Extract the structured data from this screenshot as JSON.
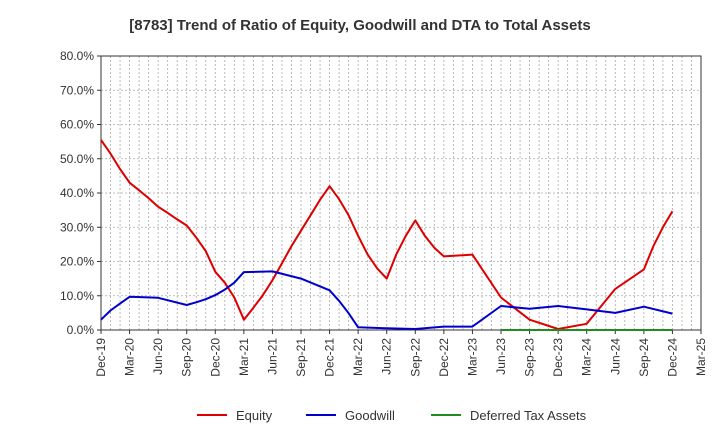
{
  "chart_data": {
    "type": "line",
    "title": "[8783]  Trend of Ratio of Equity, Goodwill and DTA to Total Assets",
    "xlabel": "",
    "ylabel": "",
    "ylim": [
      0,
      80
    ],
    "y_ticks": [
      0,
      10,
      20,
      30,
      40,
      50,
      60,
      70,
      80
    ],
    "y_tick_labels": [
      "0.0%",
      "10.0%",
      "20.0%",
      "30.0%",
      "40.0%",
      "50.0%",
      "60.0%",
      "70.0%",
      "80.0%"
    ],
    "x_ticks": [
      "Dec-19",
      "Mar-20",
      "Jun-20",
      "Sep-20",
      "Dec-20",
      "Mar-21",
      "Jun-21",
      "Sep-21",
      "Dec-21",
      "Mar-22",
      "Jun-22",
      "Sep-22",
      "Dec-22",
      "Mar-23",
      "Jun-23",
      "Sep-23",
      "Dec-23",
      "Mar-24",
      "Jun-24",
      "Sep-24",
      "Dec-24",
      "Mar-25"
    ],
    "grid": true,
    "legend_position": "bottom",
    "series": [
      {
        "name": "Equity",
        "color": "#dd0000",
        "x": [
          "2019-12",
          "2020-01",
          "2020-02",
          "2020-03",
          "2020-04",
          "2020-05",
          "2020-06",
          "2020-07",
          "2020-08",
          "2020-09",
          "2020-10",
          "2020-11",
          "2020-12",
          "2021-01",
          "2021-02",
          "2021-03",
          "2021-04",
          "2021-05",
          "2021-06",
          "2021-07",
          "2021-08",
          "2021-09",
          "2021-10",
          "2021-11",
          "2021-12",
          "2022-01",
          "2022-02",
          "2022-03",
          "2022-04",
          "2022-05",
          "2022-06",
          "2022-07",
          "2022-08",
          "2022-09",
          "2022-10",
          "2022-11",
          "2022-12",
          "2023-03",
          "2023-06",
          "2023-09",
          "2023-12",
          "2024-03",
          "2024-06",
          "2024-09",
          "2024-10",
          "2024-11",
          "2024-12"
        ],
        "values": [
          55.5,
          51.5,
          47,
          43,
          40.8,
          38.5,
          36,
          34.2,
          32.3,
          30.5,
          27,
          23,
          17,
          13.8,
          9.5,
          3,
          6.5,
          10.2,
          14.5,
          19.5,
          24.5,
          29,
          33.5,
          38,
          42,
          38.2,
          33.5,
          27.5,
          22,
          18,
          15,
          22,
          27.5,
          32,
          27.5,
          24,
          21.5,
          22,
          9.5,
          3,
          0.3,
          1.8,
          12,
          17.7,
          24.5,
          30,
          34.7
        ]
      },
      {
        "name": "Goodwill",
        "color": "#0000cc",
        "x": [
          "2019-12",
          "2020-01",
          "2020-02",
          "2020-03",
          "2020-06",
          "2020-09",
          "2020-10",
          "2020-11",
          "2020-12",
          "2021-01",
          "2021-02",
          "2021-03",
          "2021-06",
          "2021-09",
          "2021-12",
          "2022-01",
          "2022-02",
          "2022-03",
          "2022-06",
          "2022-09",
          "2022-12",
          "2023-03",
          "2023-06",
          "2023-09",
          "2023-12",
          "2024-03",
          "2024-06",
          "2024-09",
          "2024-12"
        ],
        "values": [
          3,
          5.7,
          7.7,
          9.7,
          9.4,
          7.3,
          8.1,
          9,
          10.2,
          11.8,
          13.8,
          16.9,
          17.1,
          15,
          11.6,
          8.5,
          4.9,
          0.8,
          0.5,
          0.3,
          1,
          1,
          7,
          6.2,
          7,
          6,
          5,
          6.8,
          4.8
        ]
      },
      {
        "name": "Deferred Tax Assets",
        "color": "#228b22",
        "x": [
          "2023-06",
          "2023-09",
          "2023-12",
          "2024-03",
          "2024-06",
          "2024-09",
          "2024-12"
        ],
        "values": [
          0,
          0,
          0,
          0,
          0,
          0,
          0
        ]
      }
    ]
  }
}
